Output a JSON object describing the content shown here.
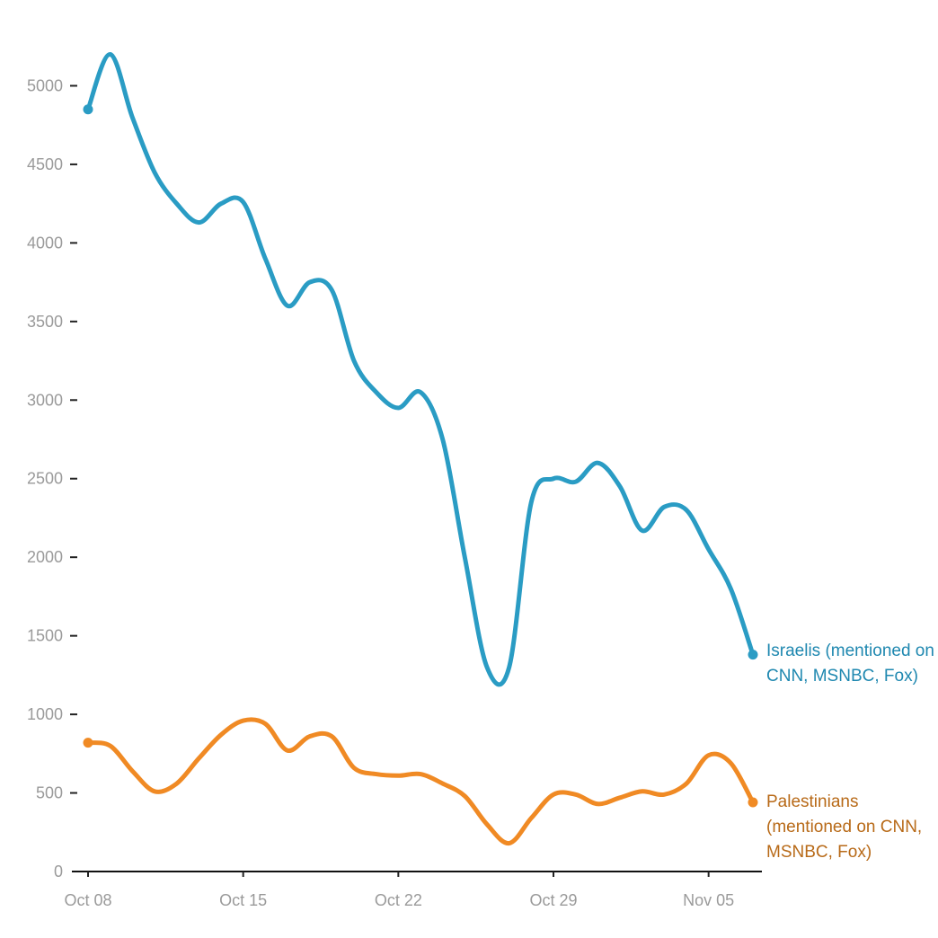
{
  "chart_data": {
    "type": "line",
    "title": "",
    "xlabel": "",
    "ylabel": "",
    "ylim": [
      0,
      5300
    ],
    "yticks": [
      0,
      500,
      1000,
      1500,
      2000,
      2500,
      3000,
      3500,
      4000,
      4500,
      5000
    ],
    "xticks": [
      "Oct 08",
      "Oct 15",
      "Oct 22",
      "Oct 29",
      "Nov 05"
    ],
    "x": [
      "2023-10-08",
      "2023-10-09",
      "2023-10-10",
      "2023-10-11",
      "2023-10-12",
      "2023-10-13",
      "2023-10-14",
      "2023-10-15",
      "2023-10-16",
      "2023-10-17",
      "2023-10-18",
      "2023-10-19",
      "2023-10-20",
      "2023-10-21",
      "2023-10-22",
      "2023-10-23",
      "2023-10-24",
      "2023-10-25",
      "2023-10-26",
      "2023-10-27",
      "2023-10-28",
      "2023-10-29",
      "2023-10-30",
      "2023-10-31",
      "2023-11-01",
      "2023-11-02",
      "2023-11-03",
      "2023-11-04",
      "2023-11-05",
      "2023-11-06",
      "2023-11-07"
    ],
    "grid": false,
    "series": [
      {
        "label": "Israelis (mentioned on CNN, MSNBC, Fox)",
        "label_lines": [
          "Israelis (mentioned on",
          "CNN, MSNBC, Fox)"
        ],
        "color": "#2a9cc4",
        "label_color": "#1f88b0",
        "values": [
          4850,
          5200,
          4800,
          4450,
          4250,
          4130,
          4250,
          4260,
          3900,
          3600,
          3750,
          3700,
          3250,
          3050,
          2950,
          3050,
          2750,
          2000,
          1300,
          1300,
          2350,
          2500,
          2480,
          2600,
          2450,
          2170,
          2320,
          2300,
          2050,
          1800,
          1380
        ]
      },
      {
        "label": "Palestinians (mentioned on CNN, MSNBC, Fox)",
        "label_lines": [
          "Palestinians",
          "(mentioned on CNN,",
          "MSNBC, Fox)"
        ],
        "color": "#f08a24",
        "label_color": "#b86a18",
        "values": [
          820,
          800,
          640,
          510,
          560,
          720,
          870,
          960,
          940,
          770,
          860,
          860,
          660,
          620,
          610,
          620,
          560,
          480,
          300,
          180,
          340,
          490,
          490,
          430,
          470,
          510,
          490,
          560,
          740,
          690,
          440
        ]
      }
    ]
  }
}
